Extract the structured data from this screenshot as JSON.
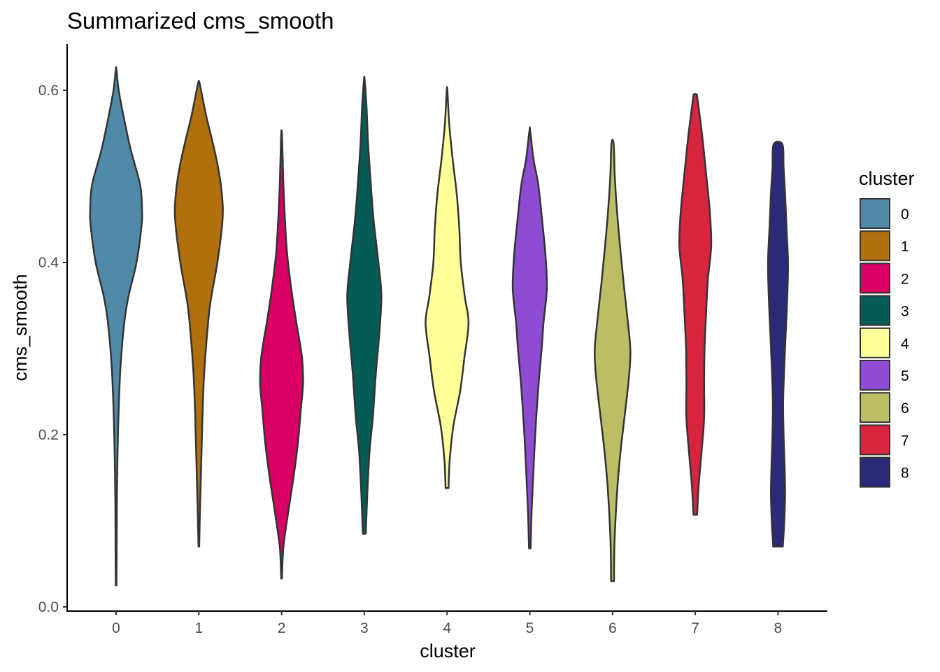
{
  "chart_data": {
    "type": "violin",
    "title": "Summarized cms_smooth",
    "xlabel": "cluster",
    "ylabel": "cms_smooth",
    "ylim": [
      0,
      0.65
    ],
    "yticks": [
      0.0,
      0.2,
      0.4,
      0.6
    ],
    "ytick_labels": [
      "0.0",
      "0.2",
      "0.4",
      "0.6"
    ],
    "categories": [
      "0",
      "1",
      "2",
      "3",
      "4",
      "5",
      "6",
      "7",
      "8"
    ],
    "grid": false,
    "legend": {
      "title": "cluster",
      "position": "right"
    },
    "series": [
      {
        "name": "0",
        "color": "#5189a9",
        "profile": [
          [
            0.025,
            0.01
          ],
          [
            0.07,
            0.015
          ],
          [
            0.12,
            0.02
          ],
          [
            0.18,
            0.04
          ],
          [
            0.23,
            0.07
          ],
          [
            0.28,
            0.12
          ],
          [
            0.33,
            0.22
          ],
          [
            0.36,
            0.33
          ],
          [
            0.4,
            0.55
          ],
          [
            0.44,
            0.68
          ],
          [
            0.46,
            0.7
          ],
          [
            0.49,
            0.65
          ],
          [
            0.53,
            0.4
          ],
          [
            0.57,
            0.2
          ],
          [
            0.6,
            0.07
          ],
          [
            0.624,
            0.01
          ]
        ]
      },
      {
        "name": "1",
        "color": "#b0700e",
        "profile": [
          [
            0.07,
            0.01
          ],
          [
            0.11,
            0.03
          ],
          [
            0.16,
            0.06
          ],
          [
            0.21,
            0.09
          ],
          [
            0.26,
            0.13
          ],
          [
            0.3,
            0.19
          ],
          [
            0.35,
            0.3
          ],
          [
            0.4,
            0.5
          ],
          [
            0.45,
            0.64
          ],
          [
            0.48,
            0.62
          ],
          [
            0.51,
            0.52
          ],
          [
            0.54,
            0.37
          ],
          [
            0.57,
            0.2
          ],
          [
            0.6,
            0.06
          ],
          [
            0.61,
            0.01
          ]
        ]
      },
      {
        "name": "2",
        "color": "#d90064",
        "profile": [
          [
            0.033,
            0.01
          ],
          [
            0.07,
            0.05
          ],
          [
            0.11,
            0.18
          ],
          [
            0.15,
            0.32
          ],
          [
            0.19,
            0.44
          ],
          [
            0.23,
            0.52
          ],
          [
            0.26,
            0.58
          ],
          [
            0.29,
            0.55
          ],
          [
            0.33,
            0.4
          ],
          [
            0.37,
            0.26
          ],
          [
            0.41,
            0.15
          ],
          [
            0.45,
            0.09
          ],
          [
            0.49,
            0.05
          ],
          [
            0.52,
            0.03
          ],
          [
            0.55,
            0.01
          ]
        ]
      },
      {
        "name": "3",
        "color": "#075b57",
        "profile": [
          [
            0.085,
            0.04
          ],
          [
            0.13,
            0.08
          ],
          [
            0.18,
            0.14
          ],
          [
            0.22,
            0.23
          ],
          [
            0.27,
            0.31
          ],
          [
            0.31,
            0.39
          ],
          [
            0.36,
            0.46
          ],
          [
            0.4,
            0.38
          ],
          [
            0.45,
            0.25
          ],
          [
            0.5,
            0.16
          ],
          [
            0.54,
            0.1
          ],
          [
            0.58,
            0.06
          ],
          [
            0.612,
            0.01
          ]
        ]
      },
      {
        "name": "4",
        "color": "#ffff99",
        "profile": [
          [
            0.138,
            0.04
          ],
          [
            0.17,
            0.07
          ],
          [
            0.21,
            0.17
          ],
          [
            0.25,
            0.35
          ],
          [
            0.29,
            0.47
          ],
          [
            0.33,
            0.58
          ],
          [
            0.36,
            0.48
          ],
          [
            0.4,
            0.37
          ],
          [
            0.44,
            0.33
          ],
          [
            0.48,
            0.26
          ],
          [
            0.52,
            0.15
          ],
          [
            0.56,
            0.06
          ],
          [
            0.599,
            0.01
          ]
        ]
      },
      {
        "name": "5",
        "color": "#8e4bd4",
        "profile": [
          [
            0.068,
            0.02
          ],
          [
            0.11,
            0.05
          ],
          [
            0.16,
            0.1
          ],
          [
            0.21,
            0.16
          ],
          [
            0.26,
            0.24
          ],
          [
            0.3,
            0.32
          ],
          [
            0.33,
            0.37
          ],
          [
            0.37,
            0.46
          ],
          [
            0.41,
            0.42
          ],
          [
            0.45,
            0.33
          ],
          [
            0.49,
            0.23
          ],
          [
            0.52,
            0.1
          ],
          [
            0.553,
            0.01
          ]
        ]
      },
      {
        "name": "6",
        "color": "#bbbe64",
        "profile": [
          [
            0.03,
            0.04
          ],
          [
            0.07,
            0.05
          ],
          [
            0.11,
            0.09
          ],
          [
            0.15,
            0.15
          ],
          [
            0.19,
            0.24
          ],
          [
            0.23,
            0.35
          ],
          [
            0.27,
            0.45
          ],
          [
            0.3,
            0.48
          ],
          [
            0.34,
            0.39
          ],
          [
            0.38,
            0.29
          ],
          [
            0.42,
            0.2
          ],
          [
            0.46,
            0.12
          ],
          [
            0.5,
            0.06
          ],
          [
            0.538,
            0.03
          ]
        ]
      },
      {
        "name": "7",
        "color": "#d7253f",
        "profile": [
          [
            0.107,
            0.05
          ],
          [
            0.14,
            0.09
          ],
          [
            0.18,
            0.17
          ],
          [
            0.22,
            0.24
          ],
          [
            0.26,
            0.24
          ],
          [
            0.3,
            0.25
          ],
          [
            0.34,
            0.29
          ],
          [
            0.38,
            0.34
          ],
          [
            0.42,
            0.43
          ],
          [
            0.46,
            0.39
          ],
          [
            0.5,
            0.3
          ],
          [
            0.55,
            0.18
          ],
          [
            0.59,
            0.06
          ],
          [
            0.595,
            0.04
          ]
        ]
      },
      {
        "name": "8",
        "color": "#2a2a78",
        "profile": [
          [
            0.07,
            0.13
          ],
          [
            0.1,
            0.17
          ],
          [
            0.13,
            0.19
          ],
          [
            0.16,
            0.18
          ],
          [
            0.2,
            0.15
          ],
          [
            0.24,
            0.14
          ],
          [
            0.28,
            0.17
          ],
          [
            0.32,
            0.21
          ],
          [
            0.36,
            0.25
          ],
          [
            0.4,
            0.27
          ],
          [
            0.44,
            0.23
          ],
          [
            0.48,
            0.19
          ],
          [
            0.51,
            0.15
          ],
          [
            0.537,
            0.12
          ]
        ]
      }
    ]
  }
}
